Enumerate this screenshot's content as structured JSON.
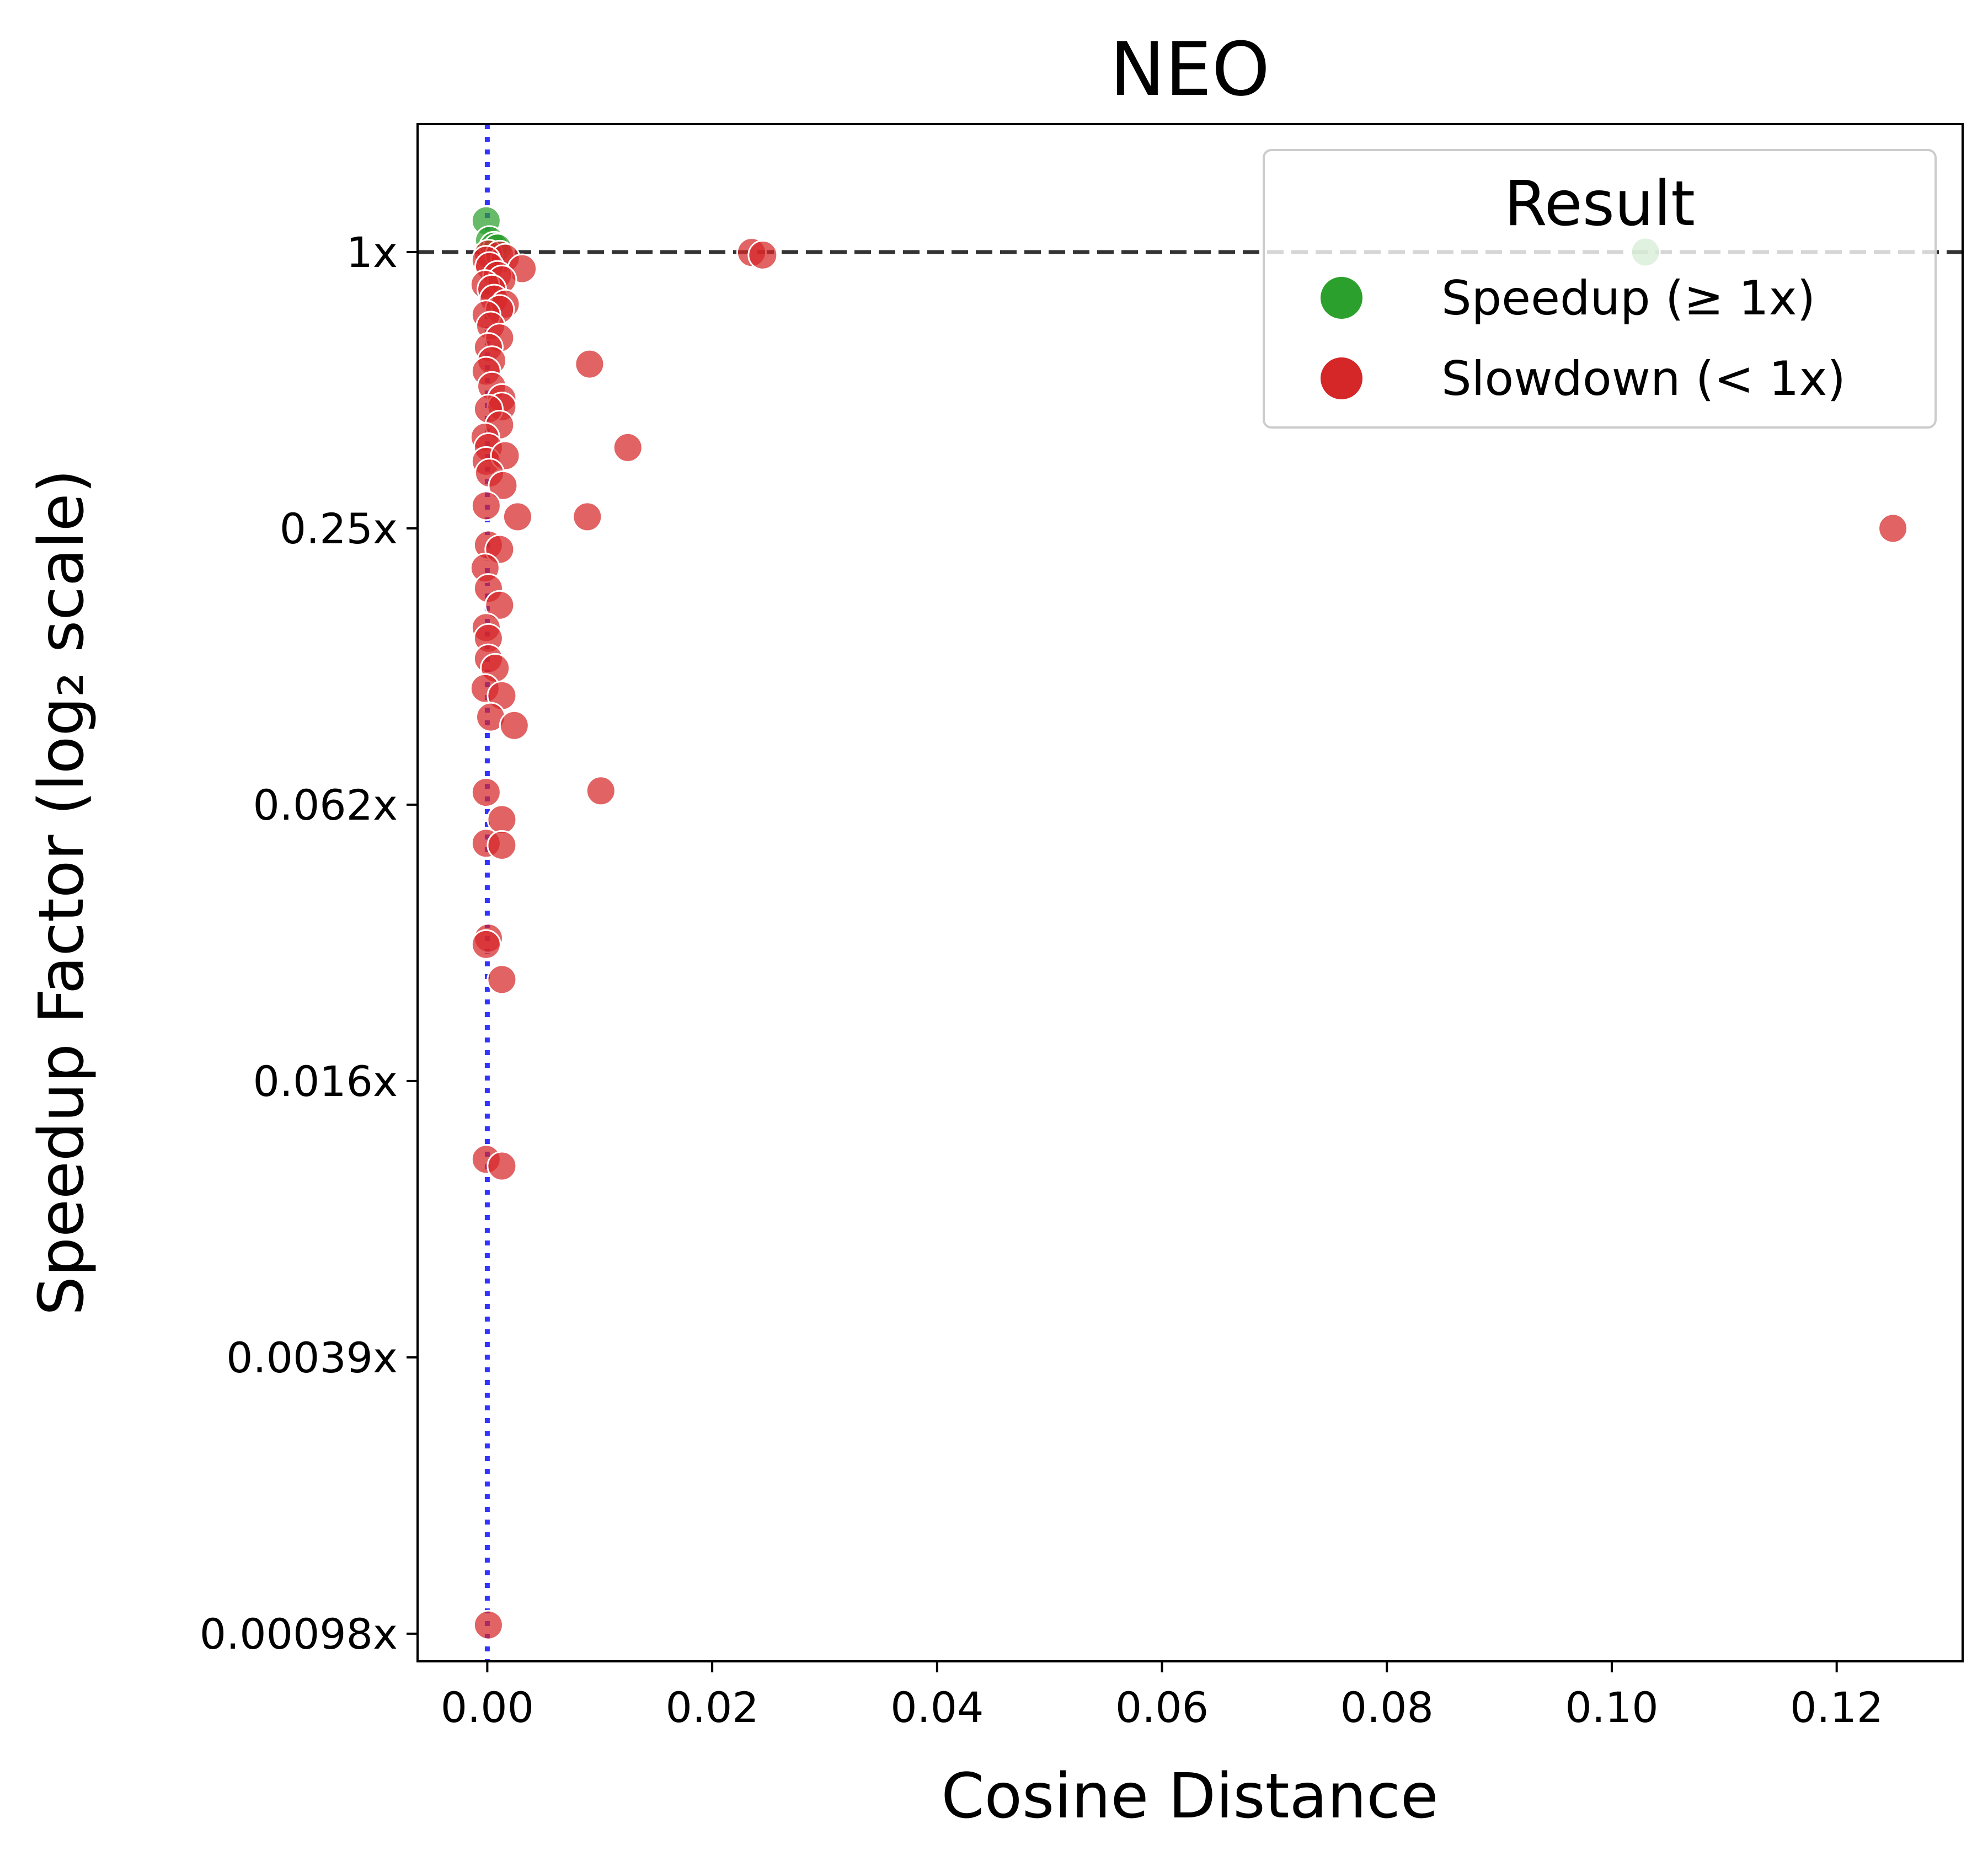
{
  "chart_data": {
    "type": "scatter",
    "title": "NEO",
    "xlabel": "Cosine Distance",
    "ylabel": "Speedup Factor (log₂ scale)",
    "y_scale": "log2",
    "xlim": [
      -0.0062,
      0.1312
    ],
    "ylim": [
      0.00085,
      1.9
    ],
    "x_ticks": [
      {
        "value": 0.0,
        "label": "0.00"
      },
      {
        "value": 0.02,
        "label": "0.02"
      },
      {
        "value": 0.04,
        "label": "0.04"
      },
      {
        "value": 0.06,
        "label": "0.06"
      },
      {
        "value": 0.08,
        "label": "0.08"
      },
      {
        "value": 0.1,
        "label": "0.10"
      },
      {
        "value": 0.12,
        "label": "0.12"
      }
    ],
    "y_ticks": [
      {
        "value": 1,
        "label": "1x"
      },
      {
        "value": 0.25,
        "label": "0.25x"
      },
      {
        "value": 0.0625,
        "label": "0.062x"
      },
      {
        "value": 0.015625,
        "label": "0.016x"
      },
      {
        "value": 0.00390625,
        "label": "0.0039x"
      },
      {
        "value": 0.0009765625,
        "label": "0.00098x"
      }
    ],
    "reference_lines": {
      "horizontal_y": 1,
      "vertical_x": 0.0
    },
    "grid": false,
    "legend": {
      "title": "Result",
      "position": "upper right",
      "entries": [
        {
          "label": "Speedup (≥ 1x)",
          "color": "#2ca02c"
        },
        {
          "label": "Slowdown (< 1x)",
          "color": "#d62728"
        }
      ]
    },
    "series": [
      {
        "name": "Speedup (≥ 1x)",
        "color": "#2ca02c",
        "points": [
          [
            -0.0001,
            1.17
          ],
          [
            0.0002,
            1.06
          ],
          [
            0.0006,
            1.03
          ],
          [
            0.0009,
            1.02
          ],
          [
            0.103,
            1.0
          ]
        ]
      },
      {
        "name": "Slowdown (< 1x)",
        "color": "#d62728",
        "points": [
          [
            0.0235,
            0.998
          ],
          [
            0.0245,
            0.985
          ],
          [
            0.0001,
            0.99
          ],
          [
            0.0011,
            0.985
          ],
          [
            0.0016,
            0.97
          ],
          [
            -0.0001,
            0.96
          ],
          [
            0.0002,
            0.93
          ],
          [
            0.0031,
            0.92
          ],
          [
            0.0009,
            0.89
          ],
          [
            0.0013,
            0.87
          ],
          [
            -0.0002,
            0.85
          ],
          [
            0.0004,
            0.83
          ],
          [
            0.0006,
            0.79
          ],
          [
            0.0016,
            0.77
          ],
          [
            0.0011,
            0.75
          ],
          [
            -0.0001,
            0.73
          ],
          [
            0.0003,
            0.69
          ],
          [
            0.0011,
            0.65
          ],
          [
            0.0001,
            0.62
          ],
          [
            0.0004,
            0.58
          ],
          [
            -0.0001,
            0.55
          ],
          [
            0.0091,
            0.57
          ],
          [
            0.0004,
            0.51
          ],
          [
            0.0013,
            0.48
          ],
          [
            0.0013,
            0.46
          ],
          [
            0.0001,
            0.455
          ],
          [
            0.0011,
            0.42
          ],
          [
            -0.0002,
            0.395
          ],
          [
            0.0001,
            0.375
          ],
          [
            -0.0001,
            0.35
          ],
          [
            0.0016,
            0.36
          ],
          [
            0.0125,
            0.375
          ],
          [
            0.0002,
            0.33
          ],
          [
            0.0014,
            0.31
          ],
          [
            -0.0001,
            0.28
          ],
          [
            0.0027,
            0.265
          ],
          [
            0.0089,
            0.265
          ],
          [
            0.125,
            0.25
          ],
          [
            0.0001,
            0.23
          ],
          [
            0.0011,
            0.225
          ],
          [
            -0.0002,
            0.205
          ],
          [
            0.0001,
            0.185
          ],
          [
            0.0011,
            0.17
          ],
          [
            -0.0001,
            0.152
          ],
          [
            0.0001,
            0.144
          ],
          [
            0.0001,
            0.13
          ],
          [
            0.0007,
            0.124
          ],
          [
            -0.0002,
            0.112
          ],
          [
            0.0013,
            0.108
          ],
          [
            0.0003,
            0.097
          ],
          [
            0.0024,
            0.093
          ],
          [
            -0.0001,
            0.0665
          ],
          [
            0.0101,
            0.067
          ],
          [
            0.0013,
            0.058
          ],
          [
            -0.0001,
            0.0515
          ],
          [
            0.0013,
            0.051
          ],
          [
            0.0001,
            0.032
          ],
          [
            -0.0001,
            0.031
          ],
          [
            0.0013,
            0.026
          ],
          [
            -0.0001,
            0.01055
          ],
          [
            0.0013,
            0.0102
          ],
          [
            0.0001,
            0.00102
          ]
        ]
      }
    ]
  }
}
